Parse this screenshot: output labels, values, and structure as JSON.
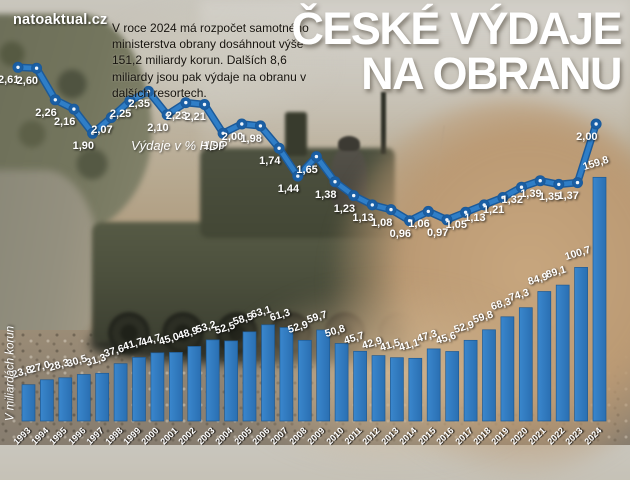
{
  "logo": "natoaktual.cz",
  "intro": "V roce 2024 má rozpočet samotného ministerstva obrany dosáhnout výše 151,2 miliardy korun. Dalších 8,6 miliardy jsou pak výdaje na obranu v dalších resortech.",
  "title": {
    "line1": "ČESKÉ VÝDAJE",
    "line2": "NA OBRANU"
  },
  "chart_data": {
    "type": "bar+line",
    "categories": [
      1993,
      1994,
      1995,
      1996,
      1997,
      1998,
      1999,
      2000,
      2001,
      2002,
      2003,
      2004,
      2005,
      2006,
      2007,
      2008,
      2009,
      2010,
      2011,
      2012,
      2013,
      2014,
      2015,
      2016,
      2017,
      2018,
      2019,
      2020,
      2021,
      2022,
      2023,
      2024
    ],
    "series": [
      {
        "name": "Výdaje v % HDP",
        "type": "line",
        "values": [
          2.61,
          2.6,
          2.26,
          2.16,
          1.9,
          2.07,
          2.25,
          2.35,
          2.1,
          2.23,
          2.21,
          1.9,
          2.0,
          1.98,
          1.74,
          1.44,
          1.65,
          1.38,
          1.23,
          1.13,
          1.08,
          0.96,
          1.06,
          0.97,
          1.05,
          1.13,
          1.21,
          1.32,
          1.39,
          1.35,
          1.37,
          2.0
        ]
      },
      {
        "name": "V miliardách korun",
        "type": "bar",
        "values": [
          23.8,
          27.0,
          28.3,
          30.5,
          31.3,
          37.6,
          41.7,
          44.7,
          45.0,
          48.9,
          53.2,
          52.5,
          58.5,
          63.1,
          61.3,
          52.9,
          59.7,
          50.8,
          45.7,
          42.9,
          41.5,
          41.1,
          47.3,
          45.6,
          52.9,
          59.8,
          68.3,
          74.3,
          84.9,
          89.1,
          100.7,
          159.8
        ]
      }
    ],
    "line_axis_label": "Výdaje v % HDP",
    "bar_axis_label": "V miliardách korun",
    "legend_position": "inline",
    "grid": false
  },
  "colors": {
    "line": "#2f7ec7",
    "line_dark": "#1b5a9a",
    "point": "#1a5fa5",
    "point_center": "#eef5fc",
    "bar_top": "#3a87cd",
    "bar_bottom": "#2a6fb2",
    "bar_stroke": "#1f5a93",
    "label_text": "#ffffff"
  }
}
